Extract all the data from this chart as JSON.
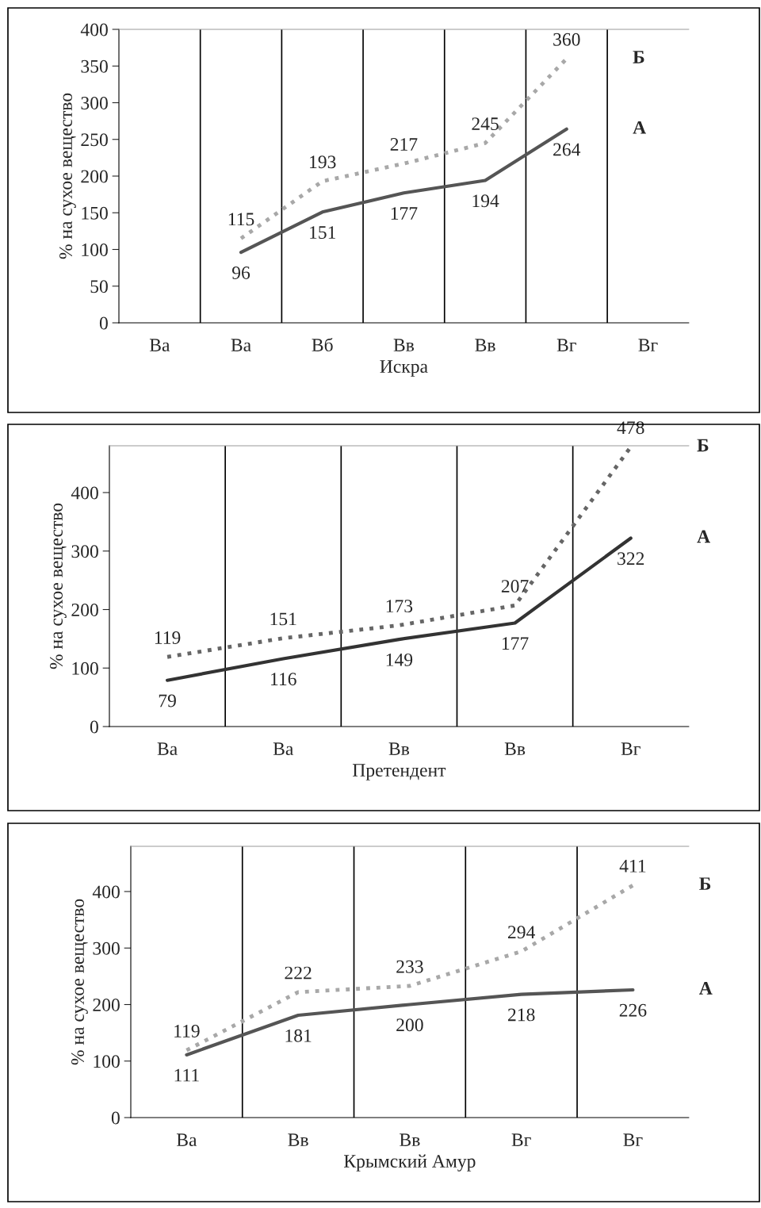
{
  "chart_data": [
    {
      "type": "line",
      "xlabel": "Искра",
      "ylabel": "% на сухое вещество",
      "categories": [
        "Ва",
        "Ва",
        "Вб",
        "Вв",
        "Вв",
        "Вг",
        "Вг"
      ],
      "ylim": [
        0,
        400
      ],
      "yticks": [
        0,
        50,
        100,
        150,
        200,
        250,
        300,
        350,
        400
      ],
      "grid": "x",
      "data_labels": true,
      "legend": false,
      "series": [
        {
          "name": "Б",
          "color": "#a8a8a8",
          "line_style": "dotted",
          "values": [
            null,
            115,
            193,
            217,
            245,
            360,
            null
          ]
        },
        {
          "name": "А",
          "color": "#555555",
          "line_style": "solid",
          "values": [
            null,
            96,
            151,
            177,
            194,
            264,
            null
          ]
        }
      ]
    },
    {
      "type": "line",
      "xlabel": "Претендент",
      "ylabel": "% на сухое вещество",
      "categories": [
        "Ва",
        "Ва",
        "Вв",
        "Вв",
        "Вг"
      ],
      "ylim": [
        0,
        480
      ],
      "yticks": [
        0,
        100,
        200,
        300,
        400
      ],
      "grid": "x",
      "data_labels": true,
      "legend": false,
      "series": [
        {
          "name": "Б",
          "color": "#666666",
          "line_style": "dotted",
          "values": [
            119,
            151,
            173,
            207,
            478
          ]
        },
        {
          "name": "А",
          "color": "#333333",
          "line_style": "solid",
          "values": [
            79,
            116,
            149,
            177,
            322
          ]
        }
      ]
    },
    {
      "type": "line",
      "xlabel": "Крымский Амур",
      "ylabel": "% на сухое вещество",
      "categories": [
        "Ва",
        "Вв",
        "Вв",
        "Вг",
        "Вг"
      ],
      "ylim": [
        0,
        480
      ],
      "yticks": [
        0,
        100,
        200,
        300,
        400
      ],
      "grid": "x",
      "data_labels": true,
      "legend": false,
      "series": [
        {
          "name": "Б",
          "color": "#a8a8a8",
          "line_style": "dotted",
          "values": [
            119,
            222,
            233,
            294,
            411
          ]
        },
        {
          "name": "А",
          "color": "#555555",
          "line_style": "solid",
          "values": [
            111,
            181,
            200,
            218,
            226
          ]
        }
      ]
    }
  ]
}
